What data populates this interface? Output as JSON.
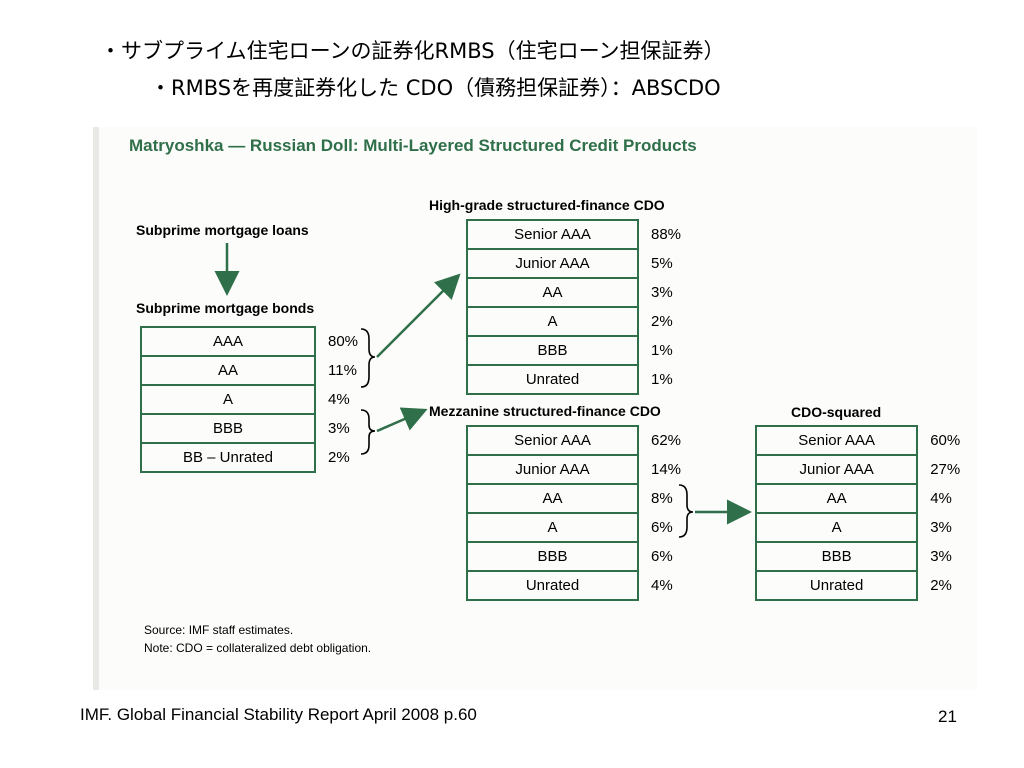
{
  "slide": {
    "title_line1": "・サブプライム住宅ローンの証券化RMBS（住宅ローン担保証券）",
    "title_line2": "・RMBSを再度証券化した CDO（債務担保証券）：ABSCDO",
    "footer": "IMF. Global Financial Stability Report  April 2008 p.60",
    "page_number": "21"
  },
  "figure": {
    "title": "Matryoshka — Russian Doll: Multi-Layered Structured Credit Products",
    "loans_label": "Subprime mortgage loans",
    "bonds": {
      "label": "Subprime mortgage bonds",
      "rows": [
        {
          "name": "AAA",
          "pct": "80%"
        },
        {
          "name": "AA",
          "pct": "11%"
        },
        {
          "name": "A",
          "pct": "4%"
        },
        {
          "name": "BBB",
          "pct": "3%"
        },
        {
          "name": "BB – Unrated",
          "pct": "2%"
        }
      ]
    },
    "high_grade": {
      "label": "High-grade structured-finance CDO",
      "rows": [
        {
          "name": "Senior AAA",
          "pct": "88%"
        },
        {
          "name": "Junior AAA",
          "pct": "5%"
        },
        {
          "name": "AA",
          "pct": "3%"
        },
        {
          "name": "A",
          "pct": "2%"
        },
        {
          "name": "BBB",
          "pct": "1%"
        },
        {
          "name": "Unrated",
          "pct": "1%"
        }
      ]
    },
    "mezzanine": {
      "label": "Mezzanine structured-finance CDO",
      "rows": [
        {
          "name": "Senior AAA",
          "pct": "62%"
        },
        {
          "name": "Junior AAA",
          "pct": "14%"
        },
        {
          "name": "AA",
          "pct": "8%"
        },
        {
          "name": "A",
          "pct": "6%"
        },
        {
          "name": "BBB",
          "pct": "6%"
        },
        {
          "name": "Unrated",
          "pct": "4%"
        }
      ]
    },
    "cdo_squared": {
      "label": "CDO-squared",
      "rows": [
        {
          "name": "Senior AAA",
          "pct": "60%"
        },
        {
          "name": "Junior AAA",
          "pct": "27%"
        },
        {
          "name": "AA",
          "pct": "4%"
        },
        {
          "name": "A",
          "pct": "3%"
        },
        {
          "name": "BBB",
          "pct": "3%"
        },
        {
          "name": "Unrated",
          "pct": "2%"
        }
      ]
    },
    "source_note": "Source: IMF staff estimates.",
    "cdo_note": "Note: CDO = collateralized debt obligation.",
    "accent_color": "#2f6f4a"
  }
}
